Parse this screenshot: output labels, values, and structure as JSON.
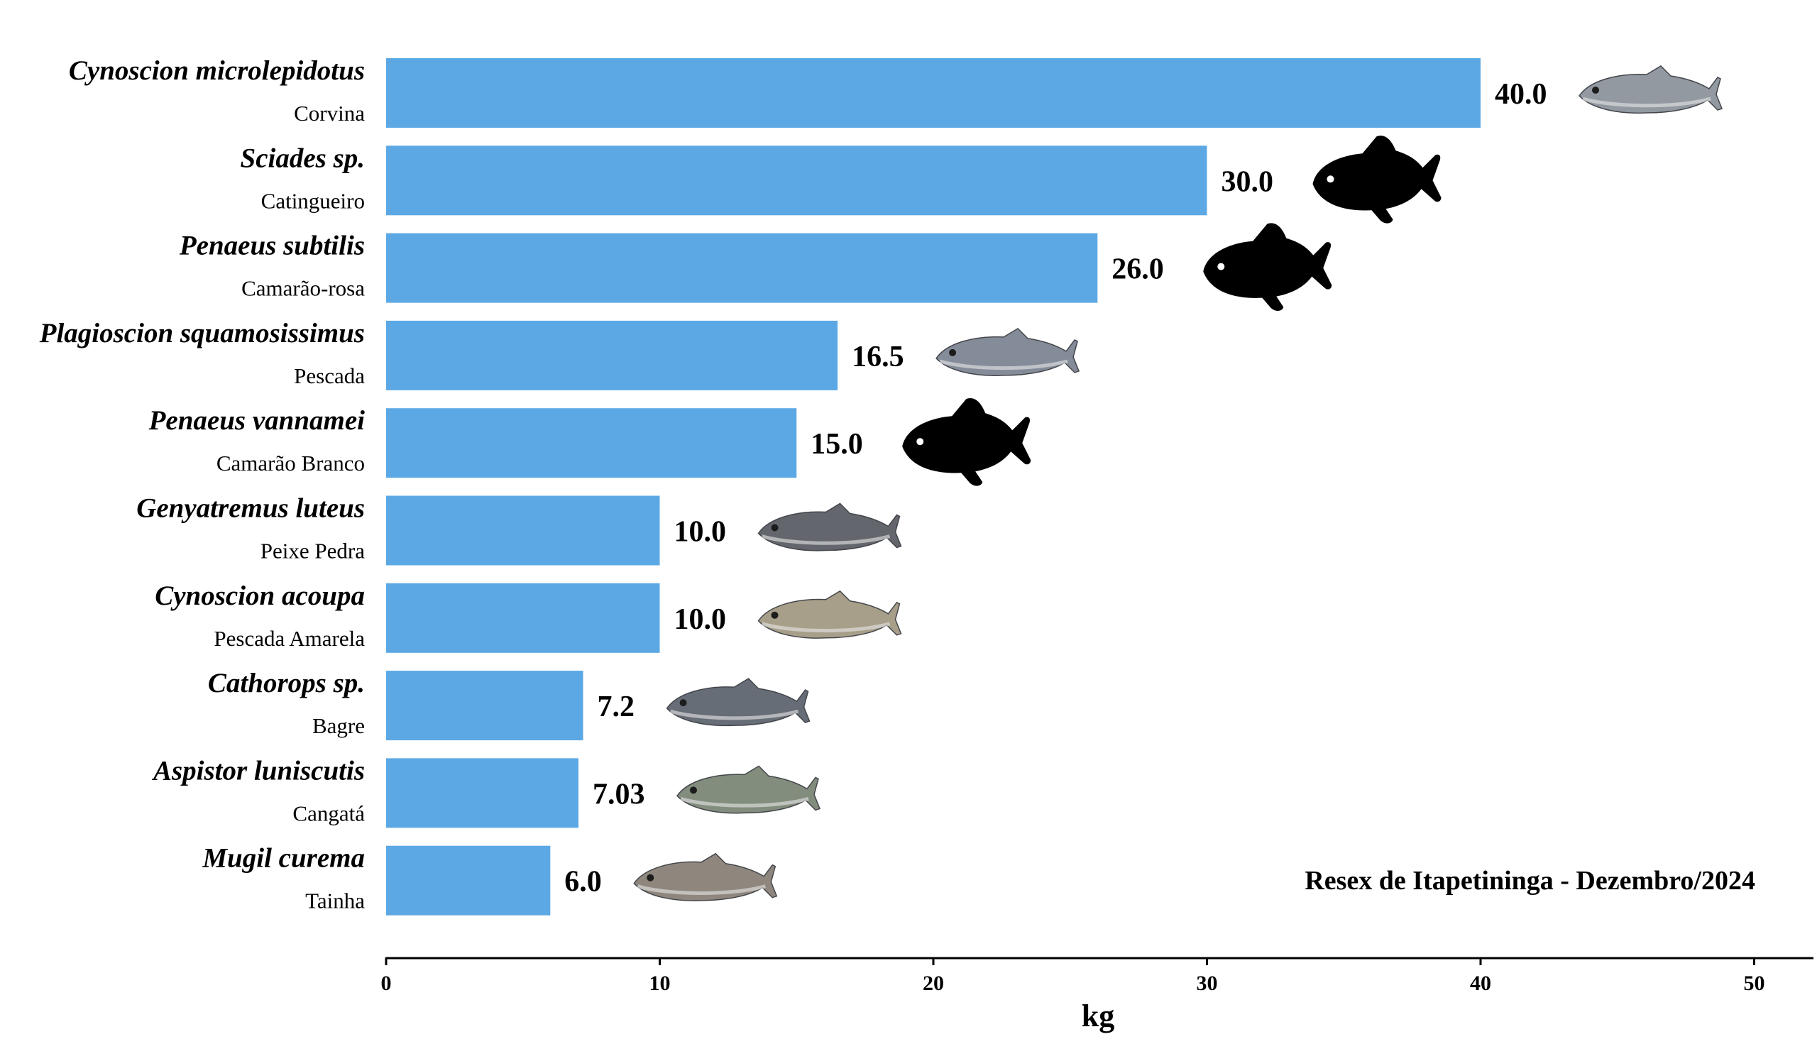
{
  "chart_data": {
    "type": "bar",
    "orientation": "horizontal",
    "title": "",
    "xlabel": "kg",
    "ylabel": "",
    "xlim": [
      0,
      52
    ],
    "xticks": [
      0,
      10,
      20,
      30,
      40,
      50
    ],
    "grid": false,
    "bar_color": "#5BA8E5",
    "annotation": "Resex de Itapetininga - Dezembro/2024",
    "annotation_position": "bottom-right",
    "categories": [
      {
        "scientific": "Cynoscion microlepidotus",
        "common": "Corvina",
        "value": 40.0,
        "label": "40.0",
        "icon": "photo-fish-grey-corvina"
      },
      {
        "scientific": "Sciades sp.",
        "common": "Catingueiro",
        "value": 30.0,
        "label": "30.0",
        "icon": "fish-silhouette-icon"
      },
      {
        "scientific": "Penaeus subtilis",
        "common": "Camarão-rosa",
        "value": 26.0,
        "label": "26.0",
        "icon": "fish-silhouette-icon"
      },
      {
        "scientific": "Plagioscion squamosissimus",
        "common": "Pescada",
        "value": 16.5,
        "label": "16.5",
        "icon": "photo-fish-pescada"
      },
      {
        "scientific": "Penaeus vannamei",
        "common": "Camarão Branco",
        "value": 15.0,
        "label": "15.0",
        "icon": "fish-silhouette-icon"
      },
      {
        "scientific": "Genyatremus luteus",
        "common": "Peixe Pedra",
        "value": 10.0,
        "label": "10.0",
        "icon": "photo-fish-peixe-pedra"
      },
      {
        "scientific": "Cynoscion acoupa",
        "common": "Pescada Amarela",
        "value": 10.0,
        "label": "10.0",
        "icon": "photo-fish-pescada-amarela"
      },
      {
        "scientific": "Cathorops sp.",
        "common": "Bagre",
        "value": 7.2,
        "label": "7.2",
        "icon": "photo-fish-bagre"
      },
      {
        "scientific": "Aspistor luniscutis",
        "common": "Cangatá",
        "value": 7.03,
        "label": "7.03",
        "icon": "photo-fish-cangata"
      },
      {
        "scientific": "Mugil curema",
        "common": "Tainha",
        "value": 6.0,
        "label": "6.0",
        "icon": "photo-fish-tainha"
      }
    ]
  },
  "colors": {
    "bar": "#5BA8E5",
    "silhouette": "#000000",
    "fish_photo": [
      "#8d949c",
      "#000000",
      "#000000",
      "#7f8694",
      "#000000",
      "#5b5f66",
      "#a39a83",
      "#5e6670",
      "#7c8778",
      "#8a8178"
    ]
  }
}
